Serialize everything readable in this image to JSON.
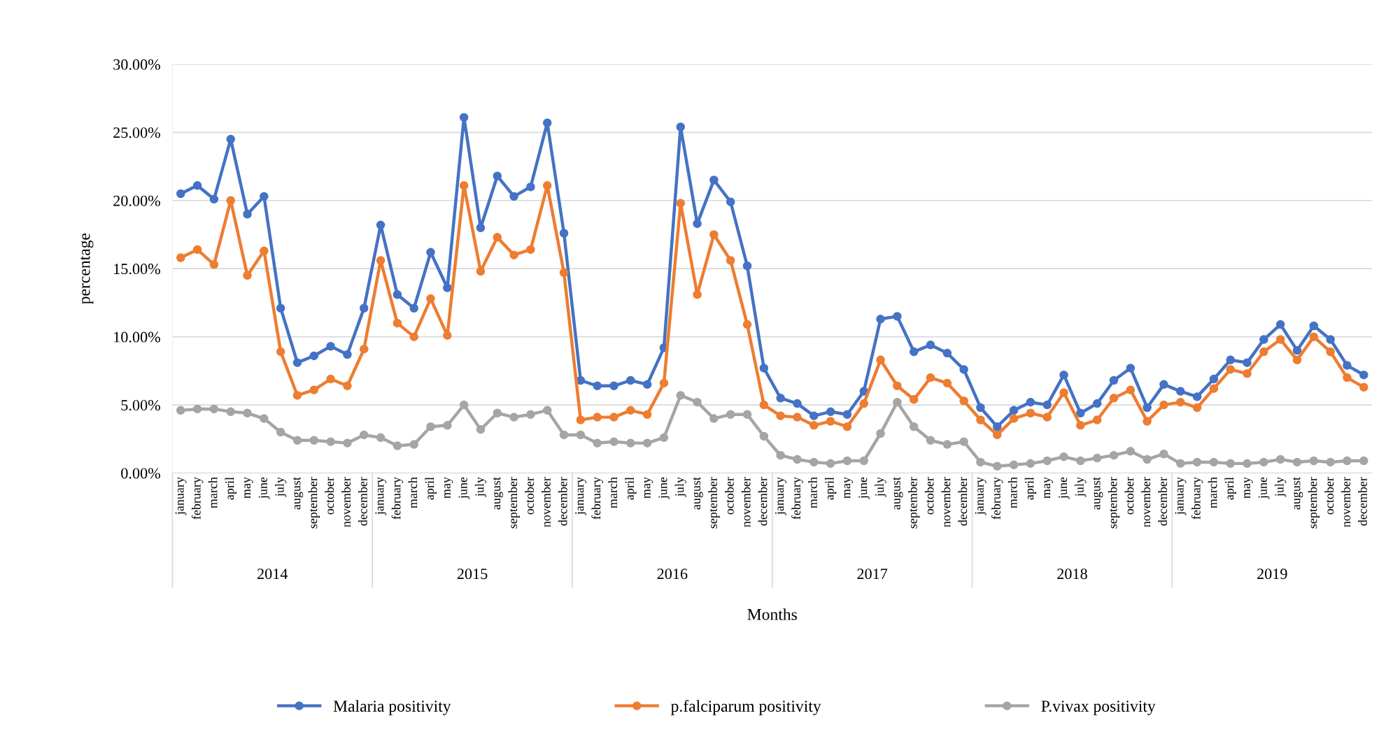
{
  "chart_data": {
    "type": "line",
    "xlabel": "Months",
    "ylabel": "percentage",
    "categories": [
      "january",
      "february",
      "march",
      "april",
      "may",
      "june",
      "july",
      "august",
      "september",
      "october",
      "november",
      "december",
      "january",
      "february",
      "march",
      "april",
      "may",
      "june",
      "july",
      "august",
      "september",
      "october",
      "november",
      "december",
      "january",
      "february",
      "march",
      "april",
      "may",
      "june",
      "july",
      "august",
      "september",
      "october",
      "november",
      "december",
      "january",
      "february",
      "march",
      "april",
      "may",
      "june",
      "july",
      "august",
      "september",
      "october",
      "november",
      "december",
      "january",
      "february",
      "march",
      "april",
      "may",
      "june",
      "july",
      "august",
      "september",
      "october",
      "november",
      "december",
      "january",
      "february",
      "march",
      "april",
      "may",
      "june",
      "july",
      "august",
      "september",
      "october",
      "november",
      "december"
    ],
    "annotations": [
      "2014",
      "2015",
      "2016",
      "2017",
      "2018",
      "2019"
    ],
    "ylim": [
      0,
      30
    ],
    "yticks": [
      {
        "value": 0,
        "label": "0.00%"
      },
      {
        "value": 5,
        "label": "5.00%"
      },
      {
        "value": 10,
        "label": "10.00%"
      },
      {
        "value": 15,
        "label": "15.00%"
      },
      {
        "value": 20,
        "label": "20.00%"
      },
      {
        "value": 25,
        "label": "25.00%"
      },
      {
        "value": 30,
        "label": "30.00%"
      }
    ],
    "grid": "y",
    "legend": "bottom",
    "marker": "circle",
    "line_style": "solid",
    "series": [
      {
        "name": "Malaria positivity",
        "color": "#4472c4",
        "values": [
          20.5,
          21.1,
          20.1,
          24.5,
          19.0,
          20.3,
          12.1,
          8.1,
          8.6,
          9.3,
          8.7,
          12.1,
          18.2,
          13.1,
          12.1,
          16.2,
          13.6,
          26.1,
          18.0,
          21.8,
          20.3,
          21.0,
          25.7,
          17.6,
          6.8,
          6.4,
          6.4,
          6.8,
          6.5,
          9.2,
          25.4,
          18.3,
          21.5,
          19.9,
          15.2,
          7.7,
          5.5,
          5.1,
          4.2,
          4.5,
          4.3,
          6.0,
          11.3,
          11.5,
          8.9,
          9.4,
          8.8,
          7.6,
          4.8,
          3.4,
          4.6,
          5.2,
          5.0,
          7.2,
          4.4,
          5.1,
          6.8,
          7.7,
          4.8,
          6.5,
          6.0,
          5.6,
          6.9,
          8.3,
          8.1,
          9.8,
          10.9,
          9.0,
          10.8,
          9.8,
          7.9,
          7.2
        ]
      },
      {
        "name": "p.falciparum positivity",
        "color": "#ed7d31",
        "values": [
          15.8,
          16.4,
          15.3,
          20.0,
          14.5,
          16.3,
          8.9,
          5.7,
          6.1,
          6.9,
          6.4,
          9.1,
          15.6,
          11.0,
          10.0,
          12.8,
          10.1,
          21.1,
          14.8,
          17.3,
          16.0,
          16.4,
          21.1,
          14.7,
          3.9,
          4.1,
          4.1,
          4.6,
          4.3,
          6.6,
          19.8,
          13.1,
          17.5,
          15.6,
          10.9,
          5.0,
          4.2,
          4.1,
          3.5,
          3.8,
          3.4,
          5.1,
          8.3,
          6.4,
          5.4,
          7.0,
          6.6,
          5.3,
          3.9,
          2.8,
          4.0,
          4.4,
          4.1,
          5.9,
          3.5,
          3.9,
          5.5,
          6.1,
          3.8,
          5.0,
          5.2,
          4.8,
          6.2,
          7.6,
          7.3,
          8.9,
          9.8,
          8.3,
          10.0,
          8.9,
          7.0,
          6.3
        ]
      },
      {
        "name": "P.vivax positivity",
        "color": "#a5a5a5",
        "values": [
          4.6,
          4.7,
          4.7,
          4.5,
          4.4,
          4.0,
          3.0,
          2.4,
          2.4,
          2.3,
          2.2,
          2.8,
          2.6,
          2.0,
          2.1,
          3.4,
          3.5,
          5.0,
          3.2,
          4.4,
          4.1,
          4.3,
          4.6,
          2.8,
          2.8,
          2.2,
          2.3,
          2.2,
          2.2,
          2.6,
          5.7,
          5.2,
          4.0,
          4.3,
          4.3,
          2.7,
          1.3,
          1.0,
          0.8,
          0.7,
          0.9,
          0.9,
          2.9,
          5.2,
          3.4,
          2.4,
          2.1,
          2.3,
          0.8,
          0.5,
          0.6,
          0.7,
          0.9,
          1.2,
          0.9,
          1.1,
          1.3,
          1.6,
          1.0,
          1.4,
          0.7,
          0.8,
          0.8,
          0.7,
          0.7,
          0.8,
          1.0,
          0.8,
          0.9,
          0.8,
          0.9,
          0.9
        ]
      }
    ]
  }
}
